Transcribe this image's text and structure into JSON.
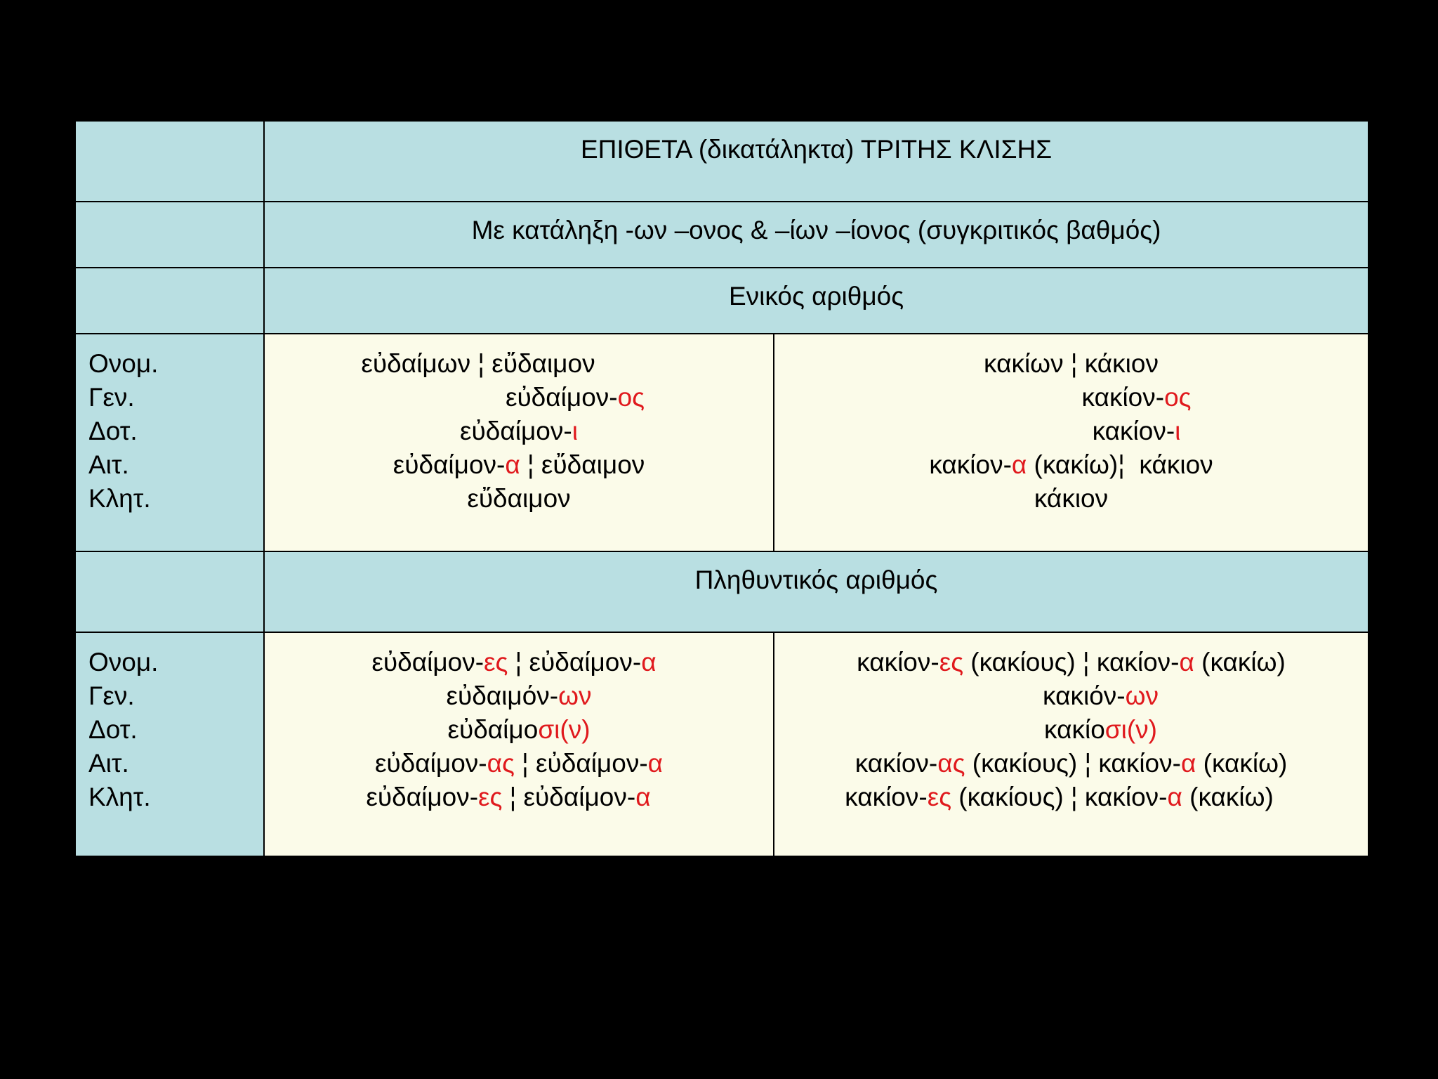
{
  "title": "ΕΠΙΘΕΤΑ (δικατάληκτα) ΤΡΙΤΗΣ ΚΛΙΣΗΣ",
  "subtitle": "Με κατάληξη -ων –ονος & –ίων –ίονος (συγκριτικός βαθμός)",
  "accent_color": "#e0191d",
  "sections": [
    {
      "heading": "Ενικός αριθμός",
      "cases": [
        "Ονομ.",
        "Γεν.",
        "Δοτ.",
        "Αιτ.",
        "Κλητ."
      ],
      "col1": [
        {
          "shift": -0.08,
          "segments": [
            {
              "t": "εὐδαίμων ¦ εὔδαιμον"
            }
          ]
        },
        {
          "shift": 0.11,
          "segments": [
            {
              "t": "εὐδαίμον-"
            },
            {
              "t": "ος",
              "red": true
            }
          ]
        },
        {
          "shift": 0.0,
          "segments": [
            {
              "t": "εὐδαίμον-"
            },
            {
              "t": "ι",
              "red": true
            }
          ]
        },
        {
          "shift": 0.0,
          "segments": [
            {
              "t": "εὐδαίμον-"
            },
            {
              "t": "α",
              "red": true
            },
            {
              "t": " ¦ εὔδαιμον"
            }
          ]
        },
        {
          "shift": 0.0,
          "segments": [
            {
              "t": "εὔδαιμον"
            }
          ]
        }
      ],
      "col2": [
        {
          "shift": 0.0,
          "segments": [
            {
              "t": "κακίων ¦ κάκιον"
            }
          ]
        },
        {
          "shift": 0.11,
          "segments": [
            {
              "t": "κακίον-"
            },
            {
              "t": "ος",
              "red": true
            }
          ]
        },
        {
          "shift": 0.11,
          "segments": [
            {
              "t": "κακίον-"
            },
            {
              "t": "ι",
              "red": true
            }
          ]
        },
        {
          "shift": 0.0,
          "segments": [
            {
              "t": "κακίον-"
            },
            {
              "t": "α",
              "red": true
            },
            {
              "t": " (κακίω)¦  κάκιον"
            }
          ]
        },
        {
          "shift": 0.0,
          "segments": [
            {
              "t": "κάκιον"
            }
          ]
        }
      ]
    },
    {
      "heading": "Πληθυντικός αριθμός",
      "cases": [
        "Ονομ.",
        "Γεν.",
        "Δοτ.",
        "Αιτ.",
        "Κλητ."
      ],
      "col1": [
        {
          "shift": -0.01,
          "segments": [
            {
              "t": "εὐδαίμον-"
            },
            {
              "t": "ες",
              "red": true
            },
            {
              "t": " ¦ εὐδαίμον-"
            },
            {
              "t": "α",
              "red": true
            }
          ]
        },
        {
          "shift": 0.0,
          "segments": [
            {
              "t": "εὐδαιμόν-"
            },
            {
              "t": "ων",
              "red": true
            }
          ]
        },
        {
          "shift": 0.0,
          "segments": [
            {
              "t": "εὐδαίμο"
            },
            {
              "t": "σι(ν)",
              "red": true
            }
          ]
        },
        {
          "shift": 0.0,
          "segments": [
            {
              "t": "εὐδαίμον-"
            },
            {
              "t": "ας",
              "red": true
            },
            {
              "t": " ¦ εὐδαίμον-"
            },
            {
              "t": "α",
              "red": true
            }
          ]
        },
        {
          "shift": -0.02,
          "segments": [
            {
              "t": "εὐδαίμον-"
            },
            {
              "t": "ες",
              "red": true
            },
            {
              "t": " ¦ εὐδαίμον-"
            },
            {
              "t": "α",
              "red": true
            }
          ]
        }
      ],
      "col2": [
        {
          "shift": 0.0,
          "segments": [
            {
              "t": "κακίον-"
            },
            {
              "t": "ες",
              "red": true
            },
            {
              "t": " (κακίους) ¦ κακίον-"
            },
            {
              "t": "α",
              "red": true
            },
            {
              "t": " (κακίω)"
            }
          ]
        },
        {
          "shift": 0.05,
          "segments": [
            {
              "t": "κακιόν-"
            },
            {
              "t": "ων",
              "red": true
            }
          ]
        },
        {
          "shift": 0.05,
          "segments": [
            {
              "t": "κακίο"
            },
            {
              "t": "σι(ν)",
              "red": true
            }
          ]
        },
        {
          "shift": 0.0,
          "segments": [
            {
              "t": "κακίον-"
            },
            {
              "t": "ας",
              "red": true
            },
            {
              "t": " (κακίους) ¦ κακίον-"
            },
            {
              "t": "α",
              "red": true
            },
            {
              "t": " (κακίω)"
            }
          ]
        },
        {
          "shift": -0.02,
          "segments": [
            {
              "t": "κακίον-"
            },
            {
              "t": "ες",
              "red": true
            },
            {
              "t": " (κακίους) ¦ κακίον-"
            },
            {
              "t": "α",
              "red": true
            },
            {
              "t": " (κακίω)"
            }
          ]
        }
      ]
    }
  ]
}
